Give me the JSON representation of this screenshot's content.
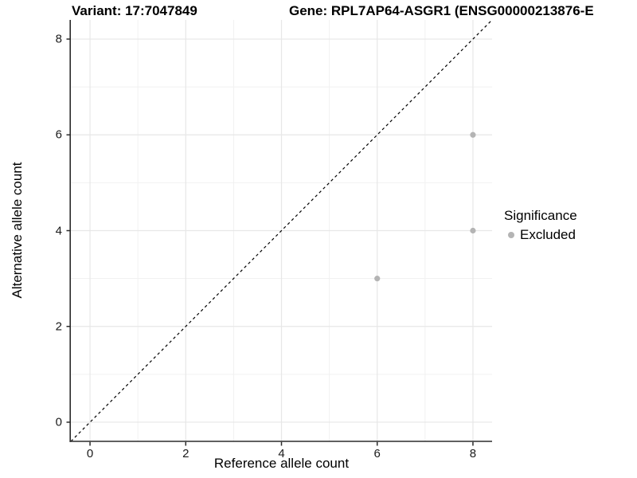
{
  "header": {
    "variant_title": "Variant: 17:7047849",
    "gene_title": "Gene: RPL7AP64-ASGR1 (ENSG00000213876-E"
  },
  "chart_data": {
    "type": "scatter",
    "xlabel": "Reference allele count",
    "ylabel": "Alternative allele count",
    "xlim": [
      -0.4,
      8.4
    ],
    "ylim": [
      -0.4,
      8.4
    ],
    "x_ticks": [
      0,
      2,
      4,
      6,
      8
    ],
    "y_ticks": [
      0,
      2,
      4,
      6,
      8
    ],
    "x_minor_ticks": [
      1,
      3,
      5,
      7
    ],
    "y_minor_ticks": [
      1,
      3,
      5,
      7
    ],
    "grid": true,
    "identity_line": {
      "type": "dashed",
      "slope": 1,
      "intercept": 0,
      "color": "#000000"
    },
    "series": [
      {
        "name": "Excluded",
        "color": "#b4b4b4",
        "points": [
          {
            "x": 8,
            "y": 6
          },
          {
            "x": 8,
            "y": 4
          },
          {
            "x": 6,
            "y": 3
          }
        ]
      }
    ],
    "legend": {
      "title": "Significance",
      "position": "right",
      "entries": [
        {
          "label": "Excluded",
          "color": "#b4b4b4"
        }
      ]
    }
  },
  "colors": {
    "background": "#ffffff",
    "major_grid": "#e7e7e7",
    "minor_grid": "#f1f1f1",
    "axis_line": "#2b2b2b",
    "tick_text": "#1a1a1a",
    "point": "#b4b4b4"
  }
}
